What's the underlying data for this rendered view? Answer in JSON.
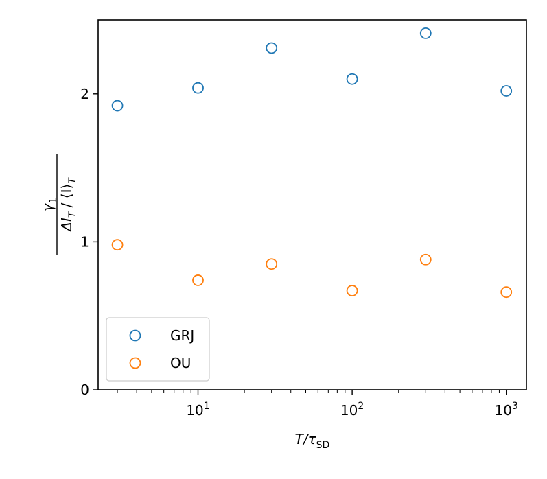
{
  "chart_data": {
    "type": "scatter",
    "x_scale": "log",
    "xlim": [
      2.25,
      1350
    ],
    "ylim": [
      0,
      2.5
    ],
    "x_ticks": [
      {
        "value": 10,
        "base": "10",
        "exp": "1"
      },
      {
        "value": 100,
        "base": "10",
        "exp": "2"
      },
      {
        "value": 1000,
        "base": "10",
        "exp": "3"
      }
    ],
    "y_ticks": [
      {
        "value": 0,
        "label": "0"
      },
      {
        "value": 1,
        "label": "1"
      },
      {
        "value": 2,
        "label": "2"
      }
    ],
    "xlabel": {
      "main": "T/τ",
      "sub": "SD"
    },
    "ylabel": {
      "numerator": {
        "main": "γ",
        "sub": "1"
      },
      "denominator": {
        "part1": "ΔI",
        "sub1": "T",
        "part2": " / ⟨I⟩",
        "sub2": "T"
      }
    },
    "legend_position": "lower-left",
    "grid": false,
    "series": [
      {
        "name": "GRJ",
        "color": "#1f77b4",
        "marker": "open-circle",
        "points": [
          {
            "x": 3,
            "y": 1.92
          },
          {
            "x": 10,
            "y": 2.04
          },
          {
            "x": 30,
            "y": 2.31
          },
          {
            "x": 100,
            "y": 2.1
          },
          {
            "x": 300,
            "y": 2.41
          },
          {
            "x": 1000,
            "y": 2.02
          }
        ]
      },
      {
        "name": "OU",
        "color": "#ff7f0e",
        "marker": "open-circle",
        "points": [
          {
            "x": 3,
            "y": 0.98
          },
          {
            "x": 10,
            "y": 0.74
          },
          {
            "x": 30,
            "y": 0.85
          },
          {
            "x": 100,
            "y": 0.67
          },
          {
            "x": 300,
            "y": 0.88
          },
          {
            "x": 1000,
            "y": 0.66
          }
        ]
      }
    ]
  }
}
